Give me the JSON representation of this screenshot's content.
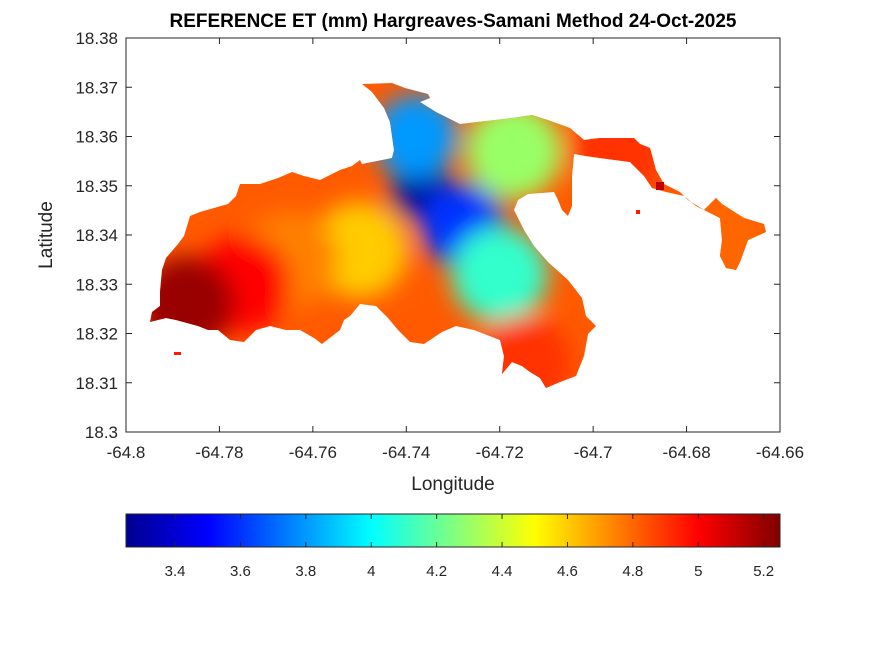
{
  "chart_data": {
    "type": "heatmap",
    "title": "REFERENCE ET (mm) Hargreaves-Samani Method  24-Oct-2025",
    "xlabel": "Longitude",
    "ylabel": "Latitude",
    "xlim": [
      -64.8,
      -64.66
    ],
    "ylim": [
      18.3,
      18.38
    ],
    "x_ticks": [
      "-64.8",
      "-64.78",
      "-64.76",
      "-64.74",
      "-64.72",
      "-64.7",
      "-64.68",
      "-64.66"
    ],
    "y_ticks": [
      "18.3",
      "18.31",
      "18.32",
      "18.33",
      "18.34",
      "18.35",
      "18.36",
      "18.37",
      "18.38"
    ],
    "grid": false,
    "colormap": "jet",
    "colorbar": {
      "orientation": "horizontal",
      "placement": "bottom",
      "range": [
        3.25,
        5.25
      ],
      "ticks": [
        "3.4",
        "3.6",
        "3.8",
        "4",
        "4.2",
        "4.4",
        "4.6",
        "4.8",
        "5",
        "5.2"
      ]
    },
    "regions": [
      {
        "lon": -64.737,
        "lat": 18.349,
        "value": 3.3
      },
      {
        "lon": -64.728,
        "lat": 18.342,
        "value": 3.6
      },
      {
        "lon": -64.738,
        "lat": 18.36,
        "value": 3.8
      },
      {
        "lon": -64.72,
        "lat": 18.332,
        "value": 4.1
      },
      {
        "lon": -64.717,
        "lat": 18.357,
        "value": 4.3
      },
      {
        "lon": -64.75,
        "lat": 18.337,
        "value": 4.6
      },
      {
        "lon": -64.765,
        "lat": 18.335,
        "value": 4.75
      },
      {
        "lon": -64.775,
        "lat": 18.33,
        "value": 5.0
      },
      {
        "lon": -64.787,
        "lat": 18.326,
        "value": 5.2
      },
      {
        "lon": -64.695,
        "lat": 18.357,
        "value": 4.9
      },
      {
        "lon": -64.673,
        "lat": 18.339,
        "value": 4.8
      },
      {
        "lon": -64.715,
        "lat": 18.314,
        "value": 4.9
      }
    ]
  },
  "colors": {
    "background": "#ffffff",
    "axes": "#262626"
  }
}
